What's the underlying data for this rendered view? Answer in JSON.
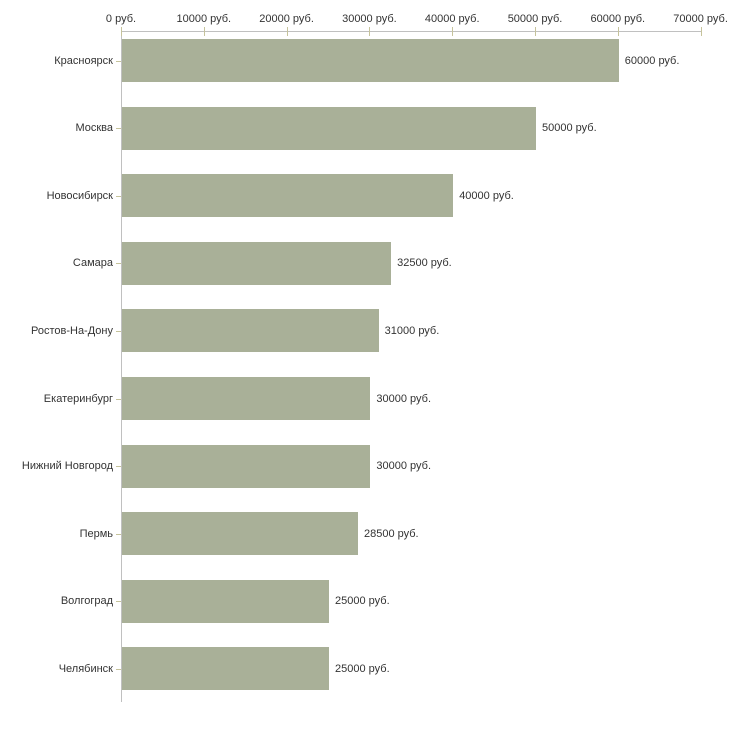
{
  "chart_data": {
    "type": "bar",
    "orientation": "horizontal",
    "title": "",
    "categories": [
      "Красноярск",
      "Москва",
      "Новосибирск",
      "Самара",
      "Ростов-На-Дону",
      "Екатеринбург",
      "Нижний Новгород",
      "Пермь",
      "Волгоград",
      "Челябинск"
    ],
    "values": [
      60000,
      50000,
      40000,
      32500,
      31000,
      30000,
      30000,
      28500,
      25000,
      25000
    ],
    "value_labels": [
      "60000 руб.",
      "50000 руб.",
      "40000 руб.",
      "32500 руб.",
      "31000 руб.",
      "30000 руб.",
      "30000 руб.",
      "28500 руб.",
      "25000 руб.",
      "25000 руб."
    ],
    "x_axis": {
      "position": "top",
      "unit": "руб.",
      "range": [
        0,
        70000
      ],
      "tick_interval": 10000,
      "ticks": [
        0,
        10000,
        20000,
        30000,
        40000,
        50000,
        60000,
        70000
      ],
      "tick_labels": [
        "0 руб.",
        "10000 руб.",
        "20000 руб.",
        "30000 руб.",
        "40000 руб.",
        "50000 руб.",
        "60000 руб.",
        "70000 руб."
      ]
    },
    "legend": "none",
    "grid": "off",
    "colors": {
      "bar": "#a9b098",
      "axis_line": "#c0c0c0",
      "tick": "#c6c39b",
      "text": "#333333",
      "background": "#ffffff"
    }
  }
}
